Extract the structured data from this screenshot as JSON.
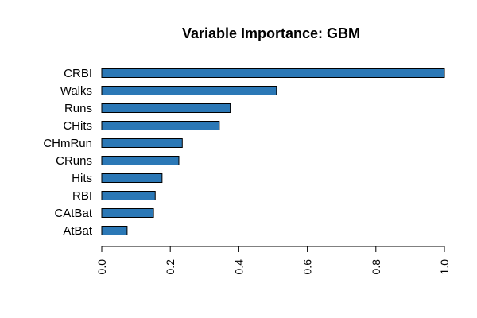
{
  "chart_data": {
    "type": "bar",
    "orientation": "horizontal",
    "title": "Variable Importance: GBM",
    "xlabel": "",
    "ylabel": "",
    "categories": [
      "CRBI",
      "Walks",
      "Runs",
      "CHits",
      "CHmRun",
      "CRuns",
      "Hits",
      "RBI",
      "CAtBat",
      "AtBat"
    ],
    "values": [
      1.0,
      0.51,
      0.375,
      0.343,
      0.235,
      0.225,
      0.176,
      0.156,
      0.151,
      0.074
    ],
    "xlim": [
      0,
      1
    ],
    "xticks": [
      "0.0",
      "0.2",
      "0.4",
      "0.6",
      "0.8",
      "1.0"
    ],
    "grid": false,
    "legend": "none",
    "bar_color": "#2b78b6",
    "bar_edge_color": "#000000"
  }
}
